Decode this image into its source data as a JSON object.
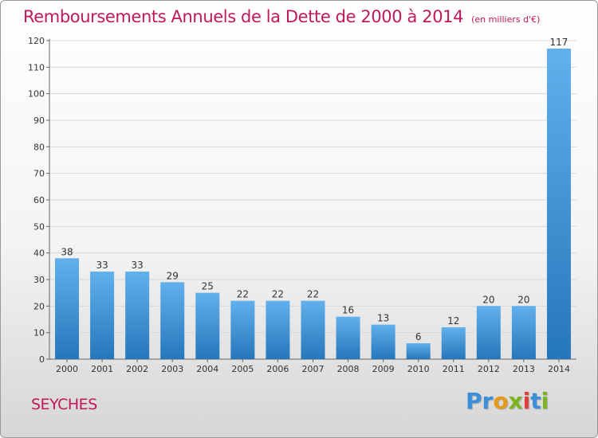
{
  "title": "Remboursements Annuels de la Dette de 2000 à 2014",
  "unit": "(en milliers d'€)",
  "city": "SEYCHES",
  "logo": {
    "text": "Proxiti",
    "letters": [
      {
        "ch": "P",
        "color": "#3a8fd8"
      },
      {
        "ch": "r",
        "color": "#3a8fd8"
      },
      {
        "ch": "o",
        "color": "#e89a1a"
      },
      {
        "ch": "x",
        "color": "#7ab51d"
      },
      {
        "ch": "i",
        "color": "#e0403a"
      },
      {
        "ch": "t",
        "color": "#3a8fd8"
      },
      {
        "ch": "i",
        "color": "#7ab51d"
      }
    ]
  },
  "colors": {
    "title": "#c0185a",
    "bar_light": "#62b0ec",
    "bar_dark": "#2577bb",
    "axis": "#666666",
    "grid": "#d8d8d8"
  },
  "chart_data": {
    "type": "bar",
    "categories": [
      "2000",
      "2001",
      "2002",
      "2003",
      "2004",
      "2005",
      "2006",
      "2007",
      "2008",
      "2009",
      "2010",
      "2011",
      "2012",
      "2013",
      "2014"
    ],
    "values": [
      38,
      33,
      33,
      29,
      25,
      22,
      22,
      22,
      16,
      13,
      6,
      12,
      20,
      20,
      117
    ],
    "ylim": [
      0,
      120
    ],
    "yticks": [
      0,
      10,
      20,
      30,
      40,
      50,
      60,
      70,
      80,
      90,
      100,
      110,
      120
    ],
    "grid": true,
    "data_labels": true
  }
}
